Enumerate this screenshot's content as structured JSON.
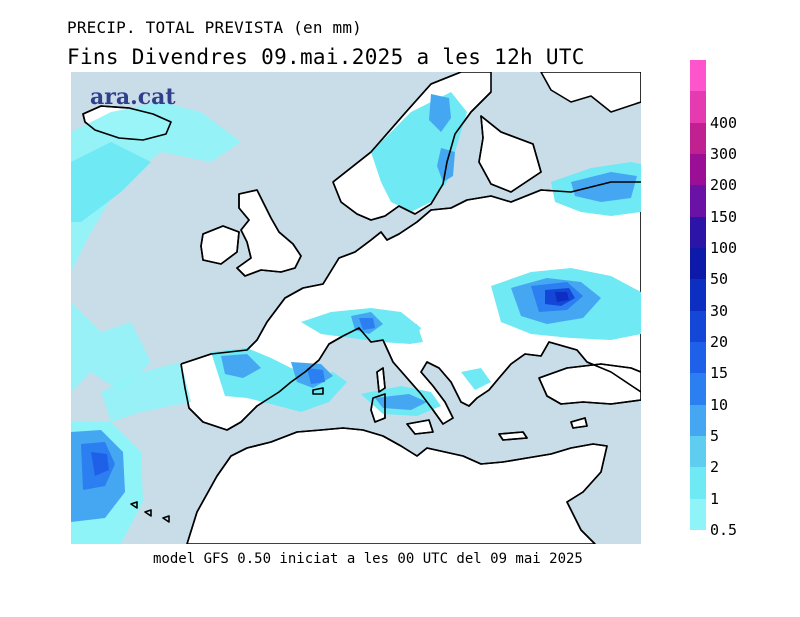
{
  "header": {
    "title": "PRECIP. TOTAL PREVISTA (en mm)",
    "subtitle": "Fins Divendres 09.mai.2025 a les 12h UTC"
  },
  "footer": {
    "caption": "model GFS 0.50 iniciat a les 00 UTC del 09 mai 2025"
  },
  "brand": {
    "logo_text": "ara.cat"
  },
  "colors": {
    "land": "#ffffff",
    "sea": "#c9dde9",
    "coast": "#000000"
  },
  "legend": {
    "levels": [
      {
        "label": "0.5",
        "color": "#8ff4f8"
      },
      {
        "label": "1",
        "color": "#6fe9f3"
      },
      {
        "label": "2",
        "color": "#5fcdf0"
      },
      {
        "label": "5",
        "color": "#45a6f2"
      },
      {
        "label": "10",
        "color": "#2b7ff0"
      },
      {
        "label": "15",
        "color": "#1f60e8"
      },
      {
        "label": "20",
        "color": "#1447d8"
      },
      {
        "label": "30",
        "color": "#0c2fc2"
      },
      {
        "label": "50",
        "color": "#0d19a8"
      },
      {
        "label": "100",
        "color": "#2b14a6"
      },
      {
        "label": "150",
        "color": "#6a12a6"
      },
      {
        "label": "200",
        "color": "#9a0f95"
      },
      {
        "label": "300",
        "color": "#c12190"
      },
      {
        "label": "400",
        "color": "#e63ab0"
      },
      {
        "label": "",
        "color": "#ff55cc"
      }
    ]
  }
}
